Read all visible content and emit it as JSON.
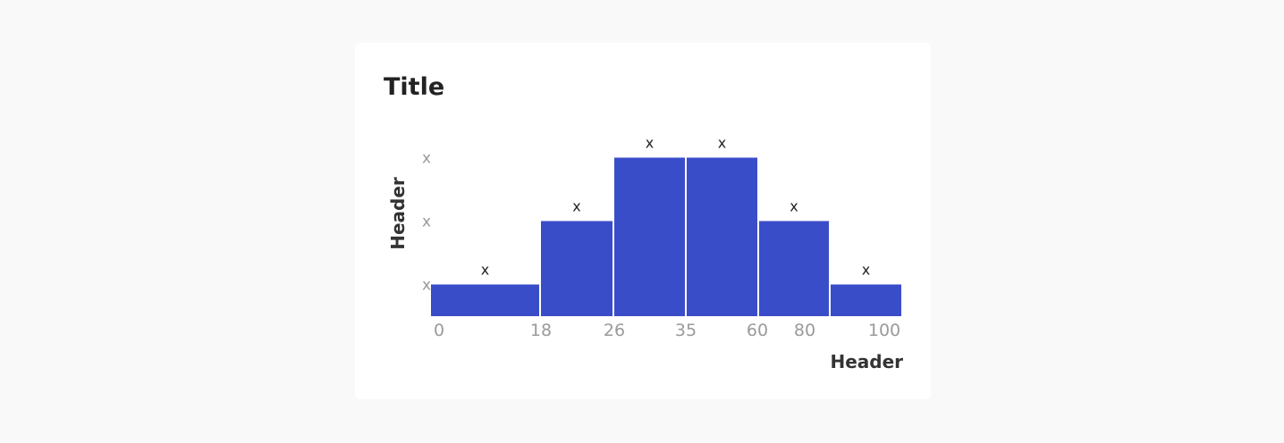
{
  "chart_data": {
    "type": "bar",
    "title": "Title",
    "xlabel": "Header",
    "ylabel": "Header",
    "bin_edges": [
      0,
      18,
      26,
      35,
      60,
      80,
      100
    ],
    "x_tick_labels": [
      "0",
      "18",
      "26",
      "35",
      "60",
      "80",
      "100"
    ],
    "y_tick_labels": [
      "x",
      "x",
      "x"
    ],
    "values": [
      1,
      3,
      5,
      5,
      3,
      1
    ],
    "data_labels": [
      "x",
      "x",
      "x",
      "x",
      "x",
      "x"
    ],
    "bar_color": "#3a4dc9",
    "grid": false,
    "legend": "none"
  }
}
